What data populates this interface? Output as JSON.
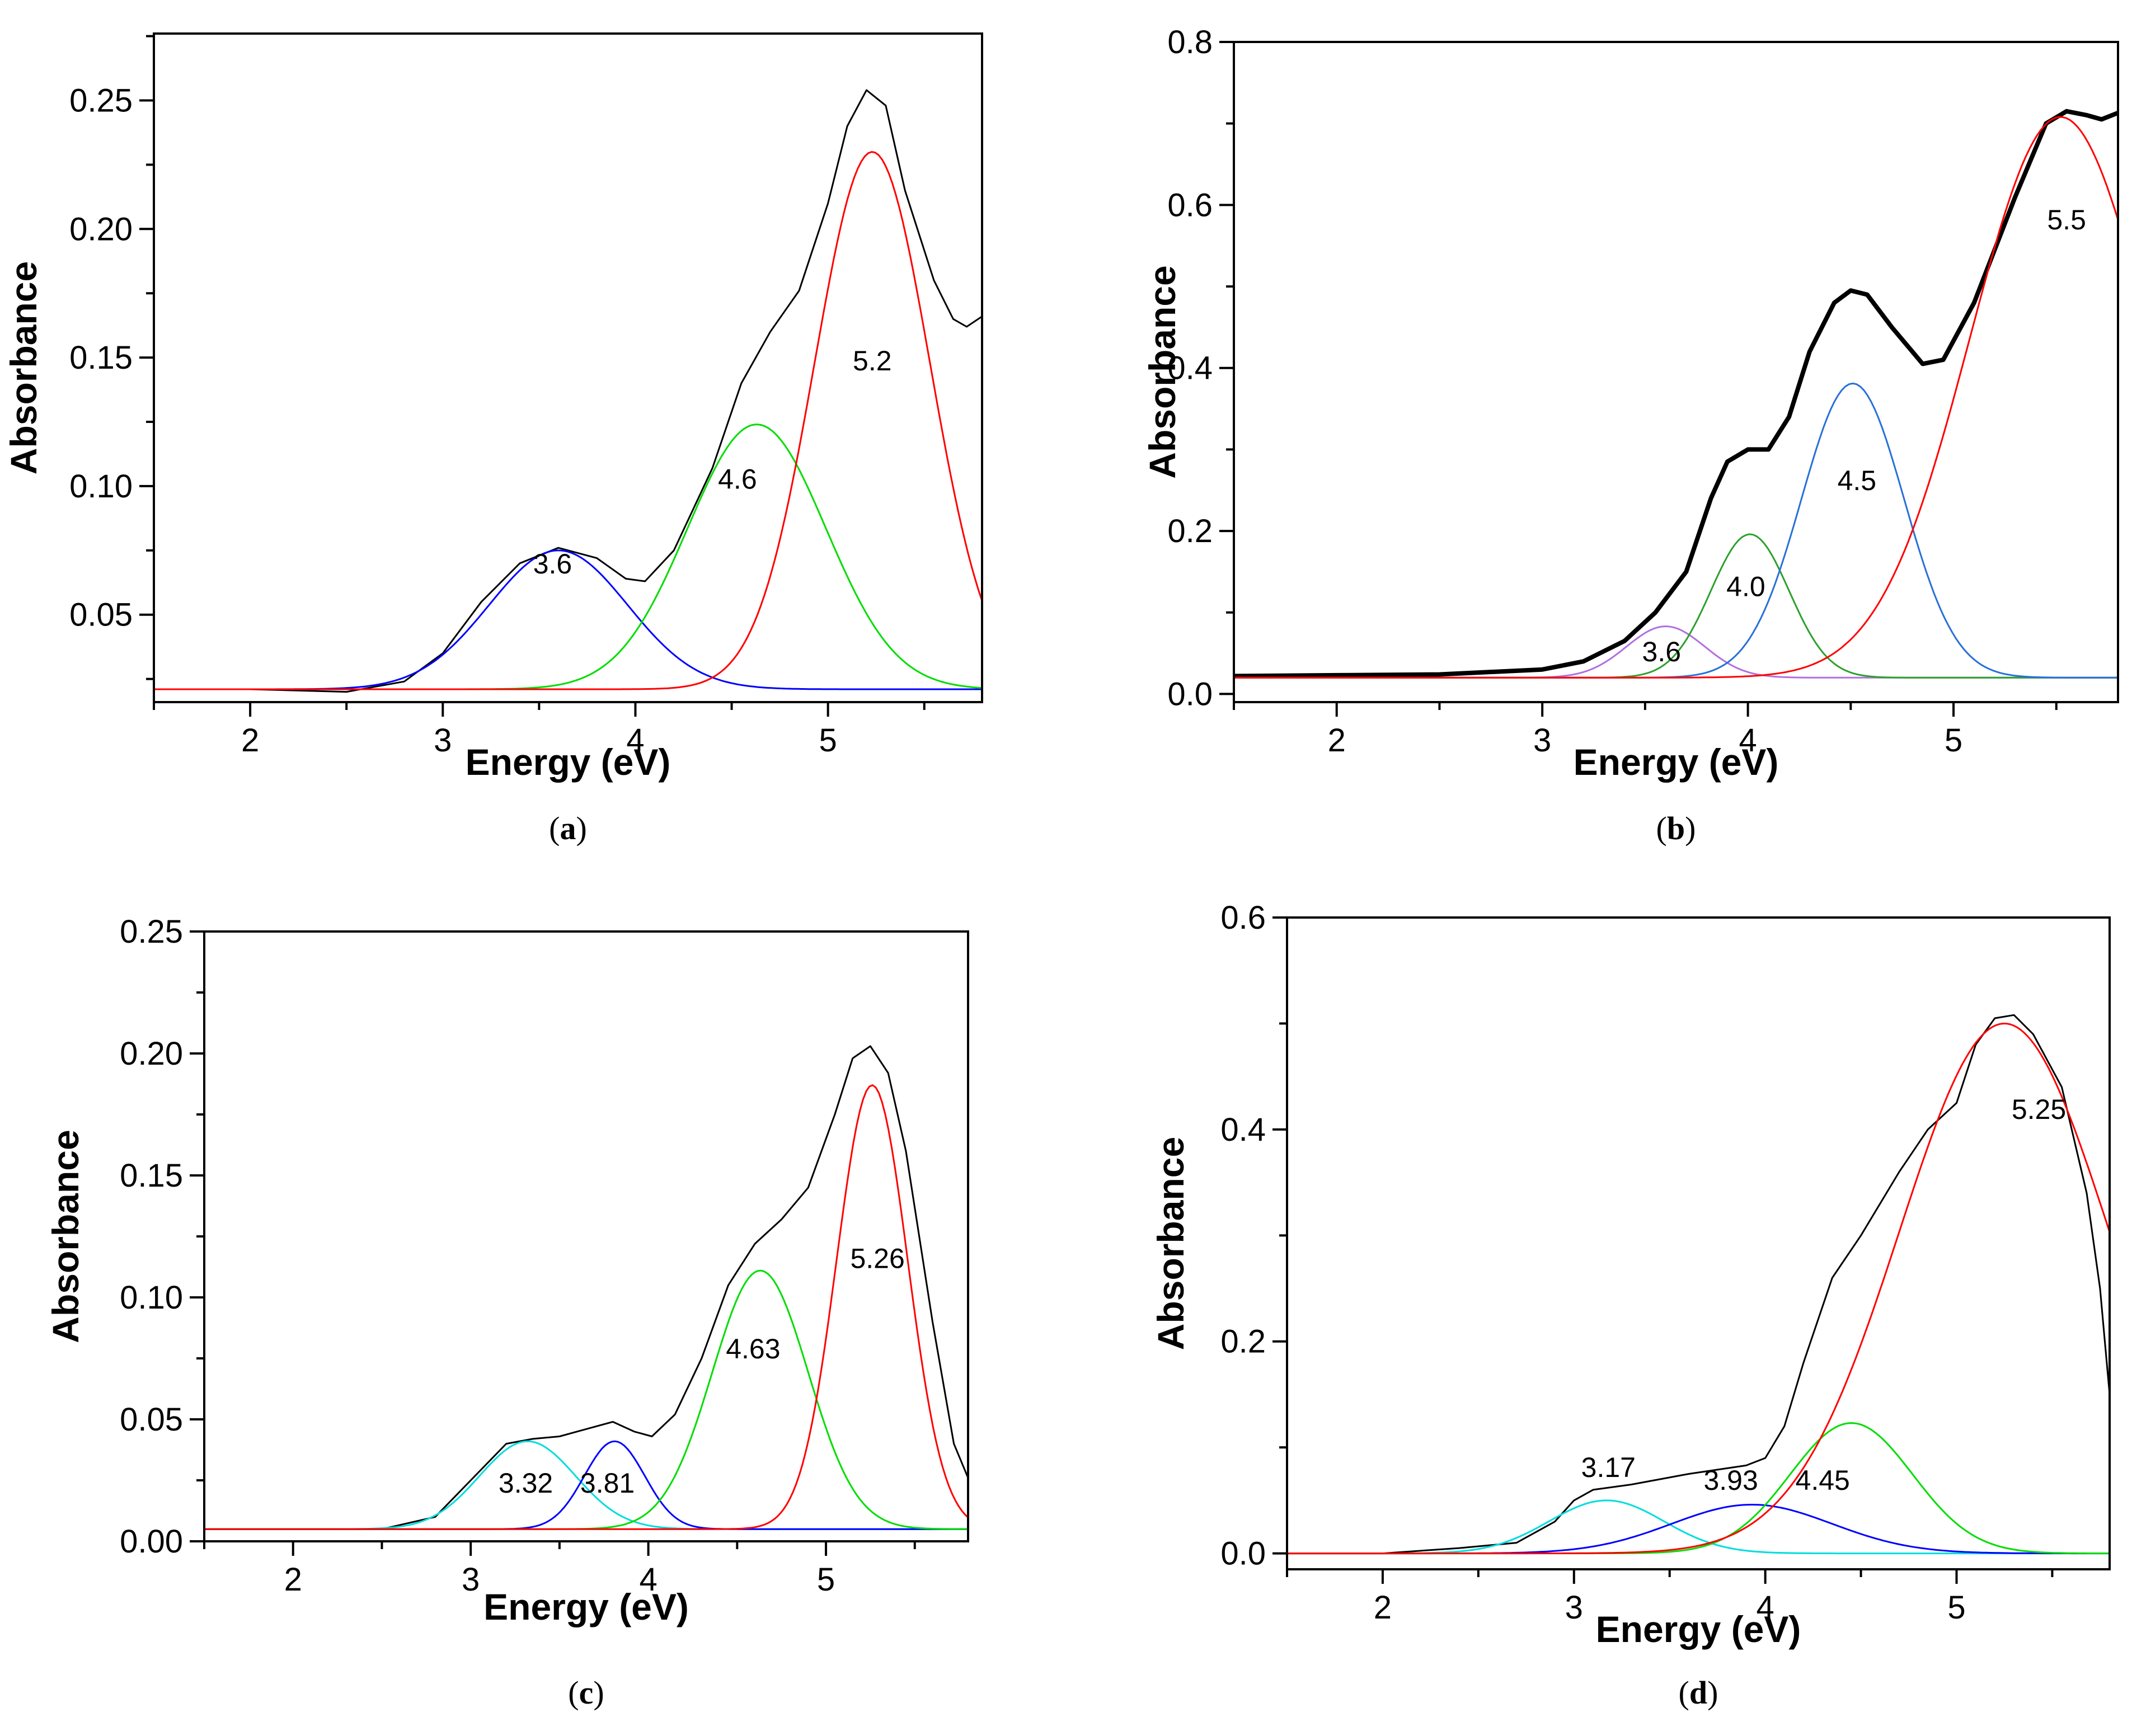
{
  "chart_data": [
    {
      "panel": "(a)",
      "panel_letter": "a",
      "type": "line",
      "xlabel": "Energy (eV)",
      "ylabel": "Absorbance",
      "xlim": [
        1.5,
        5.8
      ],
      "ylim": [
        0.016,
        0.276
      ],
      "xticks": [
        2,
        3,
        4,
        5
      ],
      "yticks": [
        0.05,
        0.1,
        0.15,
        0.2,
        0.25
      ],
      "ytick_labels": [
        "0.05",
        "0.10",
        "0.15",
        "0.20",
        "0.25"
      ],
      "baseline": 0.021,
      "series": [
        {
          "name": "measured",
          "color": "#000000",
          "width": 3,
          "points": [
            [
              1.5,
              0.021
            ],
            [
              2.0,
              0.021
            ],
            [
              2.5,
              0.02
            ],
            [
              2.8,
              0.024
            ],
            [
              3.0,
              0.035
            ],
            [
              3.2,
              0.055
            ],
            [
              3.4,
              0.07
            ],
            [
              3.6,
              0.076
            ],
            [
              3.8,
              0.072
            ],
            [
              3.95,
              0.064
            ],
            [
              4.05,
              0.063
            ],
            [
              4.2,
              0.075
            ],
            [
              4.4,
              0.107
            ],
            [
              4.55,
              0.14
            ],
            [
              4.7,
              0.16
            ],
            [
              4.85,
              0.176
            ],
            [
              5.0,
              0.21
            ],
            [
              5.1,
              0.24
            ],
            [
              5.2,
              0.254
            ],
            [
              5.3,
              0.248
            ],
            [
              5.4,
              0.215
            ],
            [
              5.55,
              0.18
            ],
            [
              5.65,
              0.165
            ],
            [
              5.72,
              0.162
            ],
            [
              5.8,
              0.166
            ]
          ]
        },
        {
          "name": "3.6",
          "color": "#0000ff",
          "width": 3,
          "gaussian": {
            "center": 3.6,
            "amp": 0.054,
            "sigma": 0.36
          }
        },
        {
          "name": "4.6",
          "color": "#00dd00",
          "width": 3,
          "gaussian": {
            "center": 4.63,
            "amp": 0.103,
            "sigma": 0.36
          }
        },
        {
          "name": "5.2",
          "color": "#ff0000",
          "width": 3,
          "gaussian": {
            "center": 5.23,
            "amp": 0.209,
            "sigma": 0.3
          }
        }
      ],
      "annotations": [
        {
          "text": "3.6",
          "x": 3.57,
          "y": 0.066
        },
        {
          "text": "4.6",
          "x": 4.53,
          "y": 0.099
        },
        {
          "text": "5.2",
          "x": 5.23,
          "y": 0.145
        }
      ]
    },
    {
      "panel": "(b)",
      "panel_letter": "b",
      "type": "line",
      "xlabel": "Energy (eV)",
      "ylabel": "Absorbance",
      "xlim": [
        1.5,
        5.8
      ],
      "ylim": [
        -0.01,
        0.8
      ],
      "xticks": [
        2,
        3,
        4,
        5
      ],
      "yticks": [
        0.0,
        0.2,
        0.4,
        0.6,
        0.8
      ],
      "ytick_labels": [
        "0.0",
        "0.2",
        "0.4",
        "0.6",
        "0.8"
      ],
      "baseline": 0.02,
      "series": [
        {
          "name": "measured",
          "color": "#000000",
          "width": 8,
          "points": [
            [
              1.5,
              0.022
            ],
            [
              2.0,
              0.023
            ],
            [
              2.5,
              0.024
            ],
            [
              3.0,
              0.03
            ],
            [
              3.2,
              0.04
            ],
            [
              3.4,
              0.065
            ],
            [
              3.55,
              0.1
            ],
            [
              3.7,
              0.15
            ],
            [
              3.82,
              0.24
            ],
            [
              3.9,
              0.285
            ],
            [
              4.0,
              0.3
            ],
            [
              4.1,
              0.3
            ],
            [
              4.2,
              0.34
            ],
            [
              4.3,
              0.42
            ],
            [
              4.42,
              0.48
            ],
            [
              4.5,
              0.495
            ],
            [
              4.58,
              0.49
            ],
            [
              4.7,
              0.45
            ],
            [
              4.85,
              0.405
            ],
            [
              4.95,
              0.41
            ],
            [
              5.1,
              0.48
            ],
            [
              5.3,
              0.61
            ],
            [
              5.45,
              0.7
            ],
            [
              5.55,
              0.715
            ],
            [
              5.65,
              0.71
            ],
            [
              5.72,
              0.705
            ],
            [
              5.8,
              0.713
            ]
          ]
        },
        {
          "name": "3.6",
          "color": "#b070e0",
          "width": 3,
          "gaussian": {
            "center": 3.6,
            "amp": 0.063,
            "sigma": 0.19
          }
        },
        {
          "name": "4.0",
          "color": "#2ca02c",
          "width": 3,
          "gaussian": {
            "center": 4.01,
            "amp": 0.176,
            "sigma": 0.19
          }
        },
        {
          "name": "4.5",
          "color": "#2870d8",
          "width": 3,
          "gaussian": {
            "center": 4.51,
            "amp": 0.361,
            "sigma": 0.25
          }
        },
        {
          "name": "5.5",
          "color": "#ff0000",
          "width": 3,
          "gaussian": {
            "center": 5.52,
            "amp": 0.688,
            "sigma": 0.44
          }
        }
      ],
      "annotations": [
        {
          "text": "3.6",
          "x": 3.58,
          "y": 0.04
        },
        {
          "text": "4.0",
          "x": 3.99,
          "y": 0.12
        },
        {
          "text": "4.5",
          "x": 4.53,
          "y": 0.25
        },
        {
          "text": "5.5",
          "x": 5.55,
          "y": 0.57
        }
      ]
    },
    {
      "panel": "(c)",
      "panel_letter": "c",
      "type": "line",
      "xlabel": "Energy (eV)",
      "ylabel": "Absorbance",
      "xlim": [
        1.5,
        5.8
      ],
      "ylim": [
        0.0,
        0.25
      ],
      "xticks": [
        2,
        3,
        4,
        5
      ],
      "yticks": [
        0.0,
        0.05,
        0.1,
        0.15,
        0.2,
        0.25
      ],
      "ytick_labels": [
        "0.00",
        "0.05",
        "0.10",
        "0.15",
        "0.20",
        "0.25"
      ],
      "baseline": 0.005,
      "series": [
        {
          "name": "measured",
          "color": "#000000",
          "width": 3,
          "points": [
            [
              1.5,
              0.005
            ],
            [
              2.0,
              0.005
            ],
            [
              2.5,
              0.005
            ],
            [
              2.8,
              0.01
            ],
            [
              3.0,
              0.025
            ],
            [
              3.2,
              0.04
            ],
            [
              3.35,
              0.042
            ],
            [
              3.5,
              0.043
            ],
            [
              3.65,
              0.046
            ],
            [
              3.8,
              0.049
            ],
            [
              3.92,
              0.045
            ],
            [
              4.02,
              0.043
            ],
            [
              4.15,
              0.052
            ],
            [
              4.3,
              0.075
            ],
            [
              4.45,
              0.105
            ],
            [
              4.6,
              0.122
            ],
            [
              4.75,
              0.132
            ],
            [
              4.9,
              0.145
            ],
            [
              5.05,
              0.175
            ],
            [
              5.15,
              0.198
            ],
            [
              5.25,
              0.203
            ],
            [
              5.35,
              0.192
            ],
            [
              5.45,
              0.16
            ],
            [
              5.6,
              0.09
            ],
            [
              5.72,
              0.04
            ],
            [
              5.8,
              0.026
            ]
          ]
        },
        {
          "name": "3.32",
          "color": "#00dddd",
          "width": 3,
          "gaussian": {
            "center": 3.32,
            "amp": 0.036,
            "sigma": 0.27
          }
        },
        {
          "name": "3.81",
          "color": "#0000ff",
          "width": 3,
          "gaussian": {
            "center": 3.81,
            "amp": 0.036,
            "sigma": 0.17
          }
        },
        {
          "name": "4.63",
          "color": "#00dd00",
          "width": 3,
          "gaussian": {
            "center": 4.63,
            "amp": 0.106,
            "sigma": 0.27
          }
        },
        {
          "name": "5.26",
          "color": "#ff0000",
          "width": 3,
          "gaussian": {
            "center": 5.26,
            "amp": 0.182,
            "sigma": 0.2
          }
        }
      ],
      "annotations": [
        {
          "text": "3.32",
          "x": 3.31,
          "y": 0.02
        },
        {
          "text": "3.81",
          "x": 3.77,
          "y": 0.02
        },
        {
          "text": "4.63",
          "x": 4.59,
          "y": 0.075
        },
        {
          "text": "5.26",
          "x": 5.29,
          "y": 0.112
        }
      ]
    },
    {
      "panel": "(d)",
      "panel_letter": "d",
      "type": "line",
      "xlabel": "Energy (eV)",
      "ylabel": "Absorbance",
      "xlim": [
        1.5,
        5.8
      ],
      "ylim": [
        -0.015,
        0.6
      ],
      "xticks": [
        2,
        3,
        4,
        5
      ],
      "yticks": [
        0.0,
        0.2,
        0.4,
        0.6
      ],
      "ytick_labels": [
        "0.0",
        "0.2",
        "0.4",
        "0.6"
      ],
      "baseline": 0.0,
      "series": [
        {
          "name": "measured",
          "color": "#000000",
          "width": 3,
          "points": [
            [
              1.5,
              0.0
            ],
            [
              2.0,
              0.0
            ],
            [
              2.4,
              0.005
            ],
            [
              2.7,
              0.01
            ],
            [
              2.9,
              0.03
            ],
            [
              3.0,
              0.05
            ],
            [
              3.1,
              0.06
            ],
            [
              3.3,
              0.065
            ],
            [
              3.6,
              0.075
            ],
            [
              3.9,
              0.083
            ],
            [
              4.0,
              0.09
            ],
            [
              4.1,
              0.12
            ],
            [
              4.2,
              0.18
            ],
            [
              4.35,
              0.26
            ],
            [
              4.5,
              0.3
            ],
            [
              4.7,
              0.36
            ],
            [
              4.85,
              0.4
            ],
            [
              5.0,
              0.425
            ],
            [
              5.1,
              0.48
            ],
            [
              5.2,
              0.505
            ],
            [
              5.3,
              0.508
            ],
            [
              5.4,
              0.49
            ],
            [
              5.55,
              0.44
            ],
            [
              5.68,
              0.34
            ],
            [
              5.75,
              0.25
            ],
            [
              5.8,
              0.15
            ]
          ]
        },
        {
          "name": "3.17",
          "color": "#00dddd",
          "width": 3,
          "gaussian": {
            "center": 3.17,
            "amp": 0.05,
            "sigma": 0.3
          }
        },
        {
          "name": "3.93",
          "color": "#0000ff",
          "width": 3,
          "gaussian": {
            "center": 3.93,
            "amp": 0.046,
            "sigma": 0.42
          }
        },
        {
          "name": "4.45",
          "color": "#00dd00",
          "width": 3,
          "gaussian": {
            "center": 4.45,
            "amp": 0.123,
            "sigma": 0.32
          }
        },
        {
          "name": "5.25",
          "color": "#ff0000",
          "width": 3,
          "gaussian": {
            "center": 5.25,
            "amp": 0.5,
            "sigma": 0.55
          }
        }
      ],
      "annotations": [
        {
          "text": "3.17",
          "x": 3.18,
          "y": 0.072
        },
        {
          "text": "3.93",
          "x": 3.82,
          "y": 0.06
        },
        {
          "text": "4.45",
          "x": 4.3,
          "y": 0.06
        },
        {
          "text": "5.25",
          "x": 5.43,
          "y": 0.41
        }
      ]
    }
  ]
}
